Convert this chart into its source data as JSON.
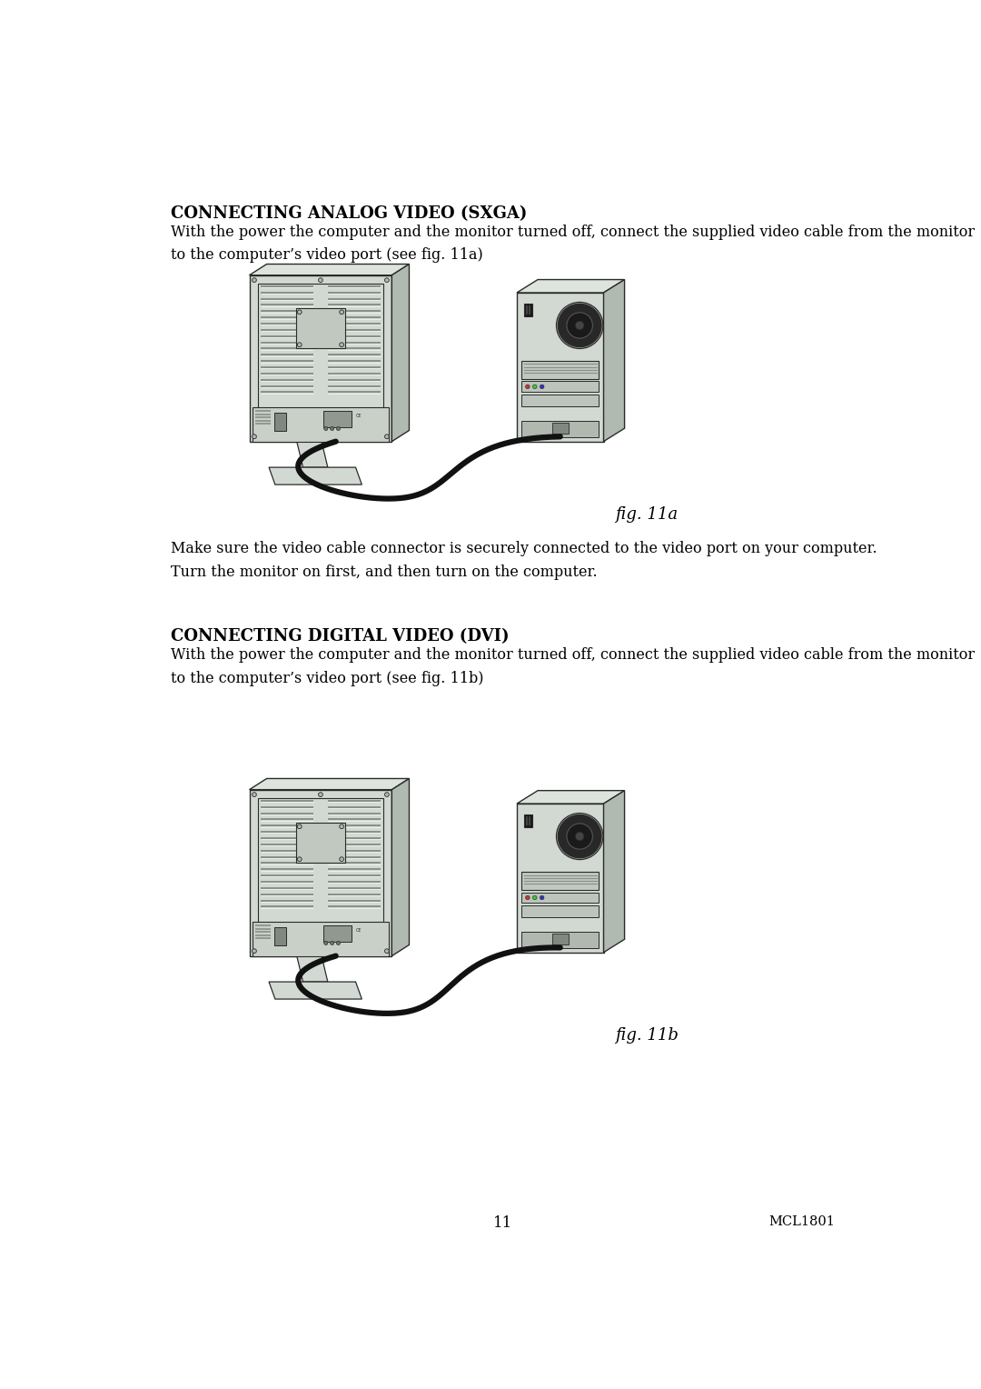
{
  "bg_color": "#ffffff",
  "text_color": "#1a1a1a",
  "title1": "CONNECTING ANALOG VIDEO (SXGA)",
  "body1": "With the power the computer and the monitor turned off, connect the supplied video cable from the monitor\nto the computer’s video port (see fig. 11a)",
  "mid_text": "Make sure the video cable connector is securely connected to the video port on your computer.\nTurn the monitor on first, and then turn on the computer.",
  "title2": "CONNECTING DIGITAL VIDEO (DVI)",
  "body2": "With the power the computer and the monitor turned off, connect the supplied video cable from the monitor\nto the computer’s video port (see fig. 11b)",
  "fig_label1": "fig. 11a",
  "fig_label2": "fig. 11b",
  "page_num": "11",
  "model": "MCL1801",
  "col_face": "#d2d9d2",
  "col_side": "#b0bab0",
  "col_top": "#dce4dc",
  "col_dark": "#888f88",
  "col_edge": "#2a2a2a",
  "col_cable": "#111111",
  "col_vent": "#bcc4bc",
  "col_port": "#555555"
}
